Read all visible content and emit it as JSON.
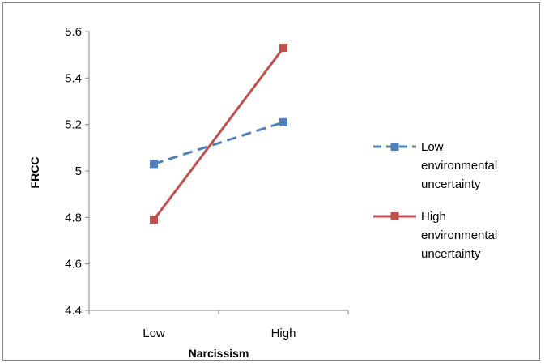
{
  "chart_data": {
    "type": "line",
    "categories": [
      "Low",
      "High"
    ],
    "series": [
      {
        "name": "Low environmental uncertainty",
        "values": [
          5.03,
          5.21
        ],
        "color": "#4f81bd",
        "dash": "dashed",
        "marker": "square"
      },
      {
        "name": "High environmental uncertainty",
        "values": [
          4.79,
          5.53
        ],
        "color": "#c0504d",
        "dash": "solid",
        "marker": "square"
      }
    ],
    "xlabel": "Narcissism",
    "ylabel": "FRCC",
    "ylim": [
      4.4,
      5.6
    ],
    "yticks": [
      "4.4",
      "4.6",
      "4.8",
      "5",
      "5.2",
      "5.4",
      "5.6"
    ],
    "grid": false,
    "legend_position": "right",
    "legend_lines": [
      [
        "Low",
        "environmental",
        "uncertainty"
      ],
      [
        "High",
        "environmental",
        "uncertainty"
      ]
    ]
  }
}
